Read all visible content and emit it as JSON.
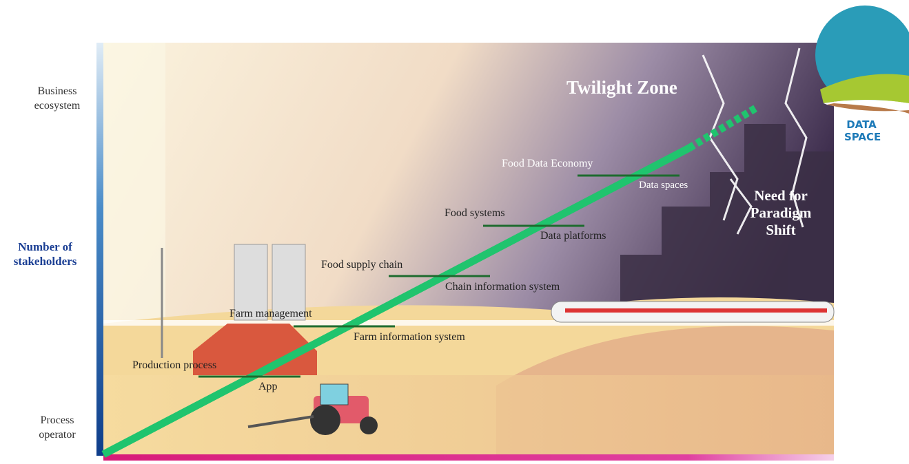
{
  "y_axis": {
    "top": "Business ecosystem",
    "label": "Number of stakeholders",
    "bottom": "Process operator"
  },
  "zones": {
    "twilight": "Twilight Zone",
    "paradigm": "Need for Paradigm Shift"
  },
  "logo": {
    "text": "DATA SPACE"
  },
  "steps": [
    {
      "upper": "Production process",
      "lower": "App"
    },
    {
      "upper": "Farm management",
      "lower": "Farm information system"
    },
    {
      "upper": "Food supply chain",
      "lower": "Chain information system"
    },
    {
      "upper": "Food systems",
      "lower": "Data platforms"
    },
    {
      "upper": "Food Data Economy",
      "lower": "Data spaces"
    }
  ]
}
